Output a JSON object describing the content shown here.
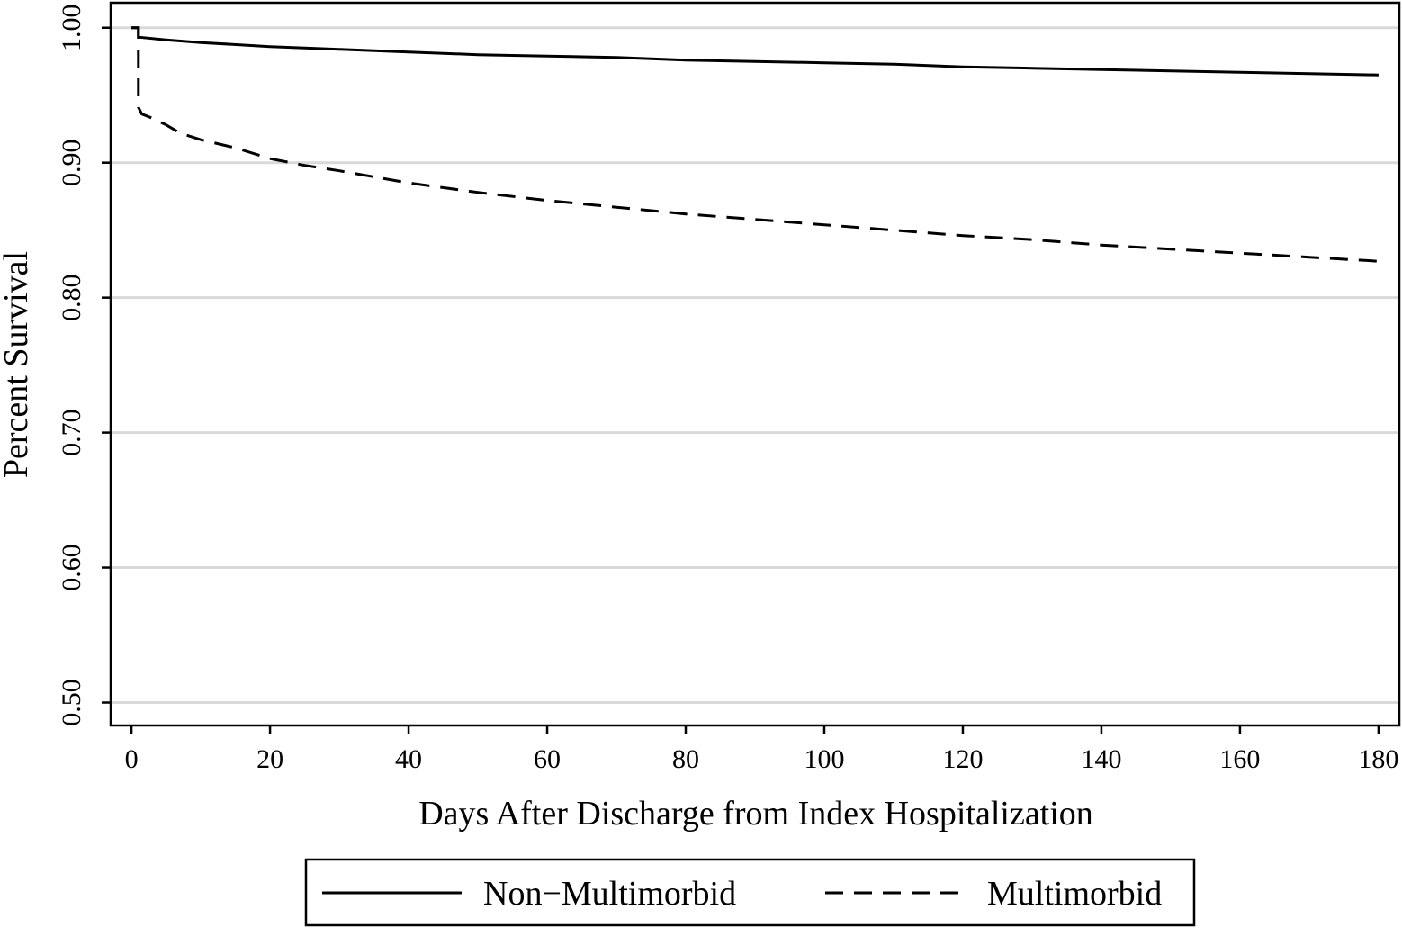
{
  "chart_data": {
    "type": "line",
    "title": "",
    "xlabel": "Days After Discharge from Index Hospitalization",
    "ylabel": "Percent Survival",
    "xlim": [
      -3,
      183
    ],
    "ylim": [
      0.483,
      1.0185
    ],
    "xticks": [
      0,
      20,
      40,
      60,
      80,
      100,
      120,
      140,
      160,
      180
    ],
    "xtick_labels": [
      "0",
      "20",
      "40",
      "60",
      "80",
      "100",
      "120",
      "140",
      "160",
      "180"
    ],
    "yticks": [
      0.5,
      0.6,
      0.7,
      0.8,
      0.9,
      1.0
    ],
    "ytick_labels": [
      "0.50",
      "0.60",
      "0.70",
      "0.80",
      "0.90",
      "1.00"
    ],
    "grid": "horizontal",
    "legend_position": "bottom",
    "colors": {
      "line": "#000000",
      "grid": "#d9d9d9",
      "frame": "#000000"
    },
    "series": [
      {
        "name": "Non−Multimorbid",
        "style": "solid",
        "points": [
          [
            0,
            1.0
          ],
          [
            1,
            1.0
          ],
          [
            1,
            0.993
          ],
          [
            5,
            0.991
          ],
          [
            10,
            0.989
          ],
          [
            20,
            0.986
          ],
          [
            30,
            0.984
          ],
          [
            40,
            0.982
          ],
          [
            50,
            0.98
          ],
          [
            60,
            0.979
          ],
          [
            70,
            0.978
          ],
          [
            80,
            0.976
          ],
          [
            90,
            0.975
          ],
          [
            100,
            0.974
          ],
          [
            110,
            0.973
          ],
          [
            120,
            0.971
          ],
          [
            130,
            0.97
          ],
          [
            140,
            0.969
          ],
          [
            150,
            0.968
          ],
          [
            160,
            0.967
          ],
          [
            170,
            0.966
          ],
          [
            180,
            0.965
          ]
        ]
      },
      {
        "name": "Multimorbid",
        "style": "dashed",
        "points": [
          [
            0,
            1.0
          ],
          [
            1,
            1.0
          ],
          [
            1,
            0.941
          ],
          [
            1.5,
            0.936
          ],
          [
            3,
            0.933
          ],
          [
            5,
            0.928
          ],
          [
            7,
            0.922
          ],
          [
            10,
            0.917
          ],
          [
            15,
            0.911
          ],
          [
            20,
            0.903
          ],
          [
            25,
            0.898
          ],
          [
            30,
            0.894
          ],
          [
            40,
            0.885
          ],
          [
            50,
            0.878
          ],
          [
            60,
            0.872
          ],
          [
            70,
            0.867
          ],
          [
            80,
            0.862
          ],
          [
            90,
            0.858
          ],
          [
            100,
            0.854
          ],
          [
            110,
            0.85
          ],
          [
            120,
            0.846
          ],
          [
            130,
            0.843
          ],
          [
            140,
            0.839
          ],
          [
            150,
            0.836
          ],
          [
            160,
            0.833
          ],
          [
            170,
            0.83
          ],
          [
            180,
            0.827
          ]
        ]
      }
    ]
  }
}
